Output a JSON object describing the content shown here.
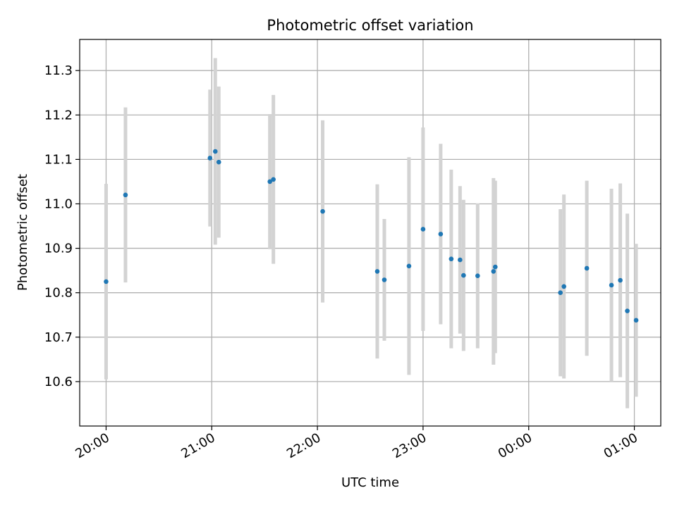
{
  "chart_data": {
    "type": "scatter",
    "title": "Photometric offset variation",
    "xlabel": "UTC time",
    "ylabel": "Photometric offset",
    "x_axis_kind": "time",
    "x_domain": [
      "19:45",
      "01:15"
    ],
    "x_ticks": [
      "20:00",
      "21:00",
      "22:00",
      "23:00",
      "00:00",
      "01:00"
    ],
    "ylim": [
      10.5,
      11.37
    ],
    "y_ticks": [
      10.6,
      10.7,
      10.8,
      10.9,
      11.0,
      11.1,
      11.2,
      11.3
    ],
    "grid": true,
    "marker_color": "#1f77b4",
    "errorbar_color": "#d3d3d3",
    "points": [
      {
        "x": "20:00",
        "y": 10.825,
        "err": 0.22
      },
      {
        "x": "20:11",
        "y": 11.02,
        "err": 0.197
      },
      {
        "x": "20:59",
        "y": 11.103,
        "err": 0.154
      },
      {
        "x": "21:02",
        "y": 11.118,
        "err": 0.21
      },
      {
        "x": "21:04",
        "y": 11.094,
        "err": 0.17
      },
      {
        "x": "21:33",
        "y": 11.05,
        "err": 0.152
      },
      {
        "x": "21:35",
        "y": 11.055,
        "err": 0.19
      },
      {
        "x": "22:03",
        "y": 10.983,
        "err": 0.205
      },
      {
        "x": "22:34",
        "y": 10.848,
        "err": 0.196
      },
      {
        "x": "22:38",
        "y": 10.829,
        "err": 0.137
      },
      {
        "x": "22:52",
        "y": 10.86,
        "err": 0.245
      },
      {
        "x": "23:00",
        "y": 10.943,
        "err": 0.229
      },
      {
        "x": "23:10",
        "y": 10.932,
        "err": 0.203
      },
      {
        "x": "23:16",
        "y": 10.876,
        "err": 0.201
      },
      {
        "x": "23:21",
        "y": 10.874,
        "err": 0.166
      },
      {
        "x": "23:23",
        "y": 10.839,
        "err": 0.17
      },
      {
        "x": "23:31",
        "y": 10.838,
        "err": 0.163
      },
      {
        "x": "23:40",
        "y": 10.848,
        "err": 0.21
      },
      {
        "x": "23:41",
        "y": 10.858,
        "err": 0.194
      },
      {
        "x": "00:18",
        "y": 10.8,
        "err": 0.188
      },
      {
        "x": "00:20",
        "y": 10.814,
        "err": 0.207
      },
      {
        "x": "00:33",
        "y": 10.855,
        "err": 0.197
      },
      {
        "x": "00:47",
        "y": 10.817,
        "err": 0.217
      },
      {
        "x": "00:52",
        "y": 10.828,
        "err": 0.218
      },
      {
        "x": "00:56",
        "y": 10.759,
        "err": 0.219
      },
      {
        "x": "01:01",
        "y": 10.738,
        "err": 0.172
      }
    ]
  }
}
